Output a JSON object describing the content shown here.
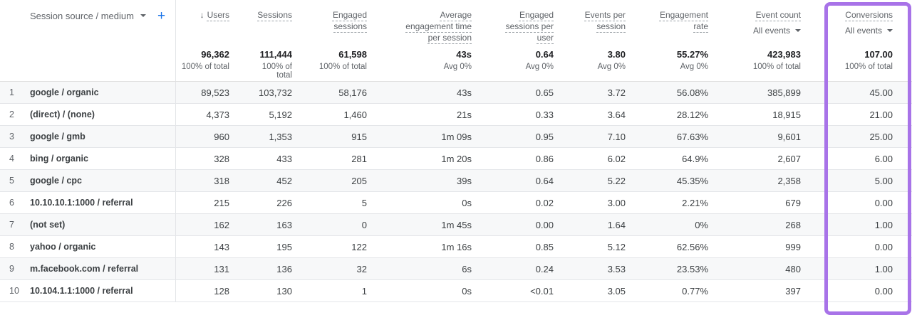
{
  "dimension_header": {
    "label": "Session source / medium",
    "add_label": "+"
  },
  "columns": [
    {
      "id": "users",
      "lines": [
        "Users"
      ],
      "sorted": true,
      "total": "96,362",
      "total_sub": "100% of total"
    },
    {
      "id": "sessions",
      "lines": [
        "Sessions"
      ],
      "total": "111,444",
      "total_sub": "100% of total"
    },
    {
      "id": "engaged-sessions",
      "lines": [
        "Engaged",
        "sessions"
      ],
      "total": "61,598",
      "total_sub": "100% of total"
    },
    {
      "id": "avg-engagement-time",
      "lines": [
        "Average",
        "engagement time",
        "per session"
      ],
      "total": "43s",
      "total_sub": "Avg 0%"
    },
    {
      "id": "engaged-sessions-per-user",
      "lines": [
        "Engaged",
        "sessions per",
        "user"
      ],
      "total": "0.64",
      "total_sub": "Avg 0%"
    },
    {
      "id": "events-per-session",
      "lines": [
        "Events per",
        "session"
      ],
      "total": "3.80",
      "total_sub": "Avg 0%"
    },
    {
      "id": "engagement-rate",
      "lines": [
        "Engagement",
        "rate"
      ],
      "total": "55.27%",
      "total_sub": "Avg 0%"
    },
    {
      "id": "event-count",
      "lines": [
        "Event count"
      ],
      "sublabel": "All events",
      "total": "423,983",
      "total_sub": "100% of total"
    },
    {
      "id": "conversions",
      "lines": [
        "Conversions"
      ],
      "sublabel": "All events",
      "total": "107.00",
      "total_sub": "100% of total",
      "highlighted": true
    }
  ],
  "rows": [
    {
      "index": "1",
      "dimension": "google / organic",
      "values": [
        "89,523",
        "103,732",
        "58,176",
        "43s",
        "0.65",
        "3.72",
        "56.08%",
        "385,899",
        "45.00"
      ]
    },
    {
      "index": "2",
      "dimension": "(direct) / (none)",
      "values": [
        "4,373",
        "5,192",
        "1,460",
        "21s",
        "0.33",
        "3.64",
        "28.12%",
        "18,915",
        "21.00"
      ]
    },
    {
      "index": "3",
      "dimension": "google / gmb",
      "values": [
        "960",
        "1,353",
        "915",
        "1m 09s",
        "0.95",
        "7.10",
        "67.63%",
        "9,601",
        "25.00"
      ]
    },
    {
      "index": "4",
      "dimension": "bing / organic",
      "values": [
        "328",
        "433",
        "281",
        "1m 20s",
        "0.86",
        "6.02",
        "64.9%",
        "2,607",
        "6.00"
      ]
    },
    {
      "index": "5",
      "dimension": "google / cpc",
      "values": [
        "318",
        "452",
        "205",
        "39s",
        "0.64",
        "5.22",
        "45.35%",
        "2,358",
        "5.00"
      ]
    },
    {
      "index": "6",
      "dimension": "10.10.10.1:1000 / referral",
      "values": [
        "215",
        "226",
        "5",
        "0s",
        "0.02",
        "3.00",
        "2.21%",
        "679",
        "0.00"
      ]
    },
    {
      "index": "7",
      "dimension": "(not set)",
      "values": [
        "162",
        "163",
        "0",
        "1m 45s",
        "0.00",
        "1.64",
        "0%",
        "268",
        "1.00"
      ]
    },
    {
      "index": "8",
      "dimension": "yahoo / organic",
      "values": [
        "143",
        "195",
        "122",
        "1m 16s",
        "0.85",
        "5.12",
        "62.56%",
        "999",
        "0.00"
      ]
    },
    {
      "index": "9",
      "dimension": "m.facebook.com / referral",
      "values": [
        "131",
        "136",
        "32",
        "6s",
        "0.24",
        "3.53",
        "23.53%",
        "480",
        "1.00"
      ]
    },
    {
      "index": "10",
      "dimension": "10.104.1.1:1000 / referral",
      "values": [
        "128",
        "130",
        "1",
        "0s",
        "<0.01",
        "3.05",
        "0.77%",
        "397",
        "0.00"
      ]
    }
  ],
  "colors": {
    "accent_blue": "#1a73e8",
    "highlight_purple": "#a873e8",
    "stripe_gray": "#f7f8f9"
  }
}
